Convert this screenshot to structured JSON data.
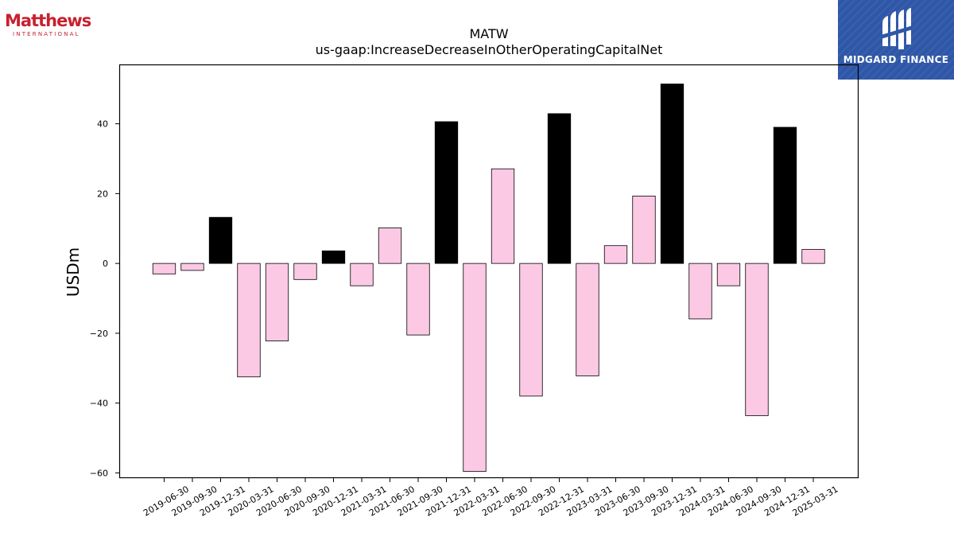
{
  "logos": {
    "left_brand": "Matthews",
    "left_sub": "INTERNATIONAL",
    "right_name": "MIDGARD FINANCE"
  },
  "colors": {
    "positive": "#000000",
    "negative": "#fcc9e4",
    "bar_edge": "#000000",
    "logo_red": "#c8202f",
    "logo_blue": "#2f57a8"
  },
  "chart_data": {
    "type": "bar",
    "title": "MATW",
    "subtitle": "us-gaap:IncreaseDecreaseInOtherOperatingCapitalNet",
    "xlabel": "",
    "ylabel": "USDm",
    "ylim": [
      -61.5,
      57
    ],
    "yticks": [
      -60,
      -40,
      -20,
      0,
      20,
      40
    ],
    "grid": false,
    "categories": [
      "2019-06-30",
      "2019-09-30",
      "2019-12-31",
      "2020-03-31",
      "2020-06-30",
      "2020-09-30",
      "2020-12-31",
      "2021-03-31",
      "2021-06-30",
      "2021-09-30",
      "2021-12-31",
      "2022-03-31",
      "2022-06-30",
      "2022-09-30",
      "2022-12-31",
      "2023-03-31",
      "2023-06-30",
      "2023-09-30",
      "2023-12-31",
      "2024-03-31",
      "2024-06-30",
      "2024-09-30",
      "2024-12-31",
      "2025-03-31"
    ],
    "values": [
      -3.0,
      -2.0,
      13.2,
      -32.5,
      -22.2,
      -4.6,
      3.6,
      -6.4,
      10.2,
      -20.5,
      40.6,
      -59.6,
      27.1,
      -38.0,
      42.9,
      -32.2,
      5.1,
      19.3,
      51.4,
      -15.9,
      -6.4,
      -43.6,
      39.0,
      4.0
    ],
    "highlight": [
      false,
      false,
      true,
      false,
      false,
      false,
      true,
      false,
      false,
      false,
      true,
      false,
      false,
      false,
      true,
      false,
      false,
      false,
      true,
      false,
      false,
      false,
      true,
      false
    ]
  }
}
